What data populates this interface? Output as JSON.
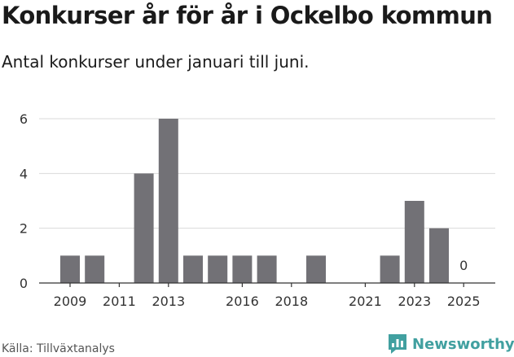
{
  "title": "Konkurser år för år i Ockelbo kommun",
  "subtitle": "Antal konkurser under januari till juni.",
  "source": "Källa: Tillväxtanalys",
  "brand": "Newsworthy",
  "colors": {
    "bar": "#727176",
    "brand": "#41a0a0",
    "grid": "#d9d9d9",
    "axis": "#333333"
  },
  "chart_data": {
    "type": "bar",
    "title": "Konkurser år för år i Ockelbo kommun",
    "subtitle": "Antal konkurser under januari till juni.",
    "categories": [
      "2009",
      "2010",
      "2011",
      "2012",
      "2013",
      "2014",
      "2015",
      "2016",
      "2017",
      "2018",
      "2019",
      "2020",
      "2021",
      "2022",
      "2023",
      "2024",
      "2025"
    ],
    "values": [
      1,
      1,
      0,
      4,
      6,
      1,
      1,
      1,
      1,
      0,
      1,
      0,
      0,
      1,
      3,
      2,
      0
    ],
    "xticks": [
      "2009",
      "2011",
      "2013",
      "2016",
      "2018",
      "2021",
      "2023",
      "2025"
    ],
    "yticks": [
      0,
      2,
      4,
      6
    ],
    "ylim": [
      0,
      6
    ],
    "xlabel": "",
    "ylabel": "",
    "data_labels": [
      {
        "category": "2025",
        "text": "0"
      }
    ],
    "grid": true,
    "legend": "none"
  }
}
